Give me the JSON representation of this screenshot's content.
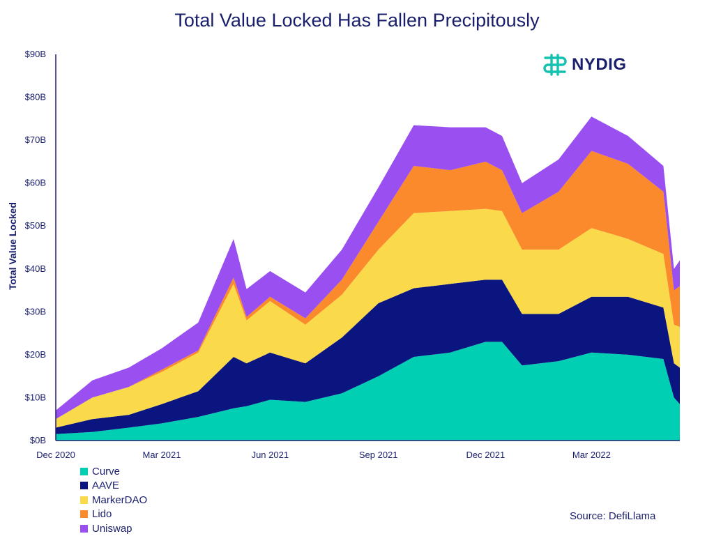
{
  "chart_data": {
    "type": "area",
    "stacked": true,
    "title": "Total Value Locked Has Fallen Precipitously",
    "xlabel": "",
    "ylabel": "Total Value Locked",
    "ylim": [
      0,
      90
    ],
    "y_ticks": [
      "$0B",
      "$10B",
      "$20B",
      "$30B",
      "$40B",
      "$50B",
      "$60B",
      "$70B",
      "$80B",
      "$90B"
    ],
    "x_ticks": [
      "Dec 2020",
      "Mar 2021",
      "Jun 2021",
      "Sep 2021",
      "Dec 2021",
      "Mar 2022"
    ],
    "x": [
      "2020-12-01",
      "2021-01-01",
      "2021-02-01",
      "2021-03-01",
      "2021-04-01",
      "2021-05-01",
      "2021-05-12",
      "2021-06-01",
      "2021-07-01",
      "2021-08-01",
      "2021-09-01",
      "2021-10-01",
      "2021-11-01",
      "2021-12-01",
      "2021-12-15",
      "2022-01-01",
      "2022-02-01",
      "2022-03-01",
      "2022-04-01",
      "2022-05-01",
      "2022-05-10",
      "2022-05-15"
    ],
    "series": [
      {
        "name": "Curve",
        "color": "#00cfb4",
        "values": [
          1.5,
          2.0,
          3.0,
          4.0,
          5.5,
          7.5,
          8.0,
          9.5,
          9.0,
          11.0,
          15.0,
          19.5,
          20.5,
          23.0,
          23.0,
          17.5,
          18.5,
          20.5,
          20.0,
          19.0,
          10.0,
          8.5
        ]
      },
      {
        "name": "AAVE",
        "color": "#0a1580",
        "values": [
          1.5,
          3.0,
          3.0,
          4.5,
          6.0,
          12.0,
          10.0,
          11.0,
          9.0,
          13.0,
          17.0,
          16.0,
          16.0,
          14.5,
          14.5,
          12.0,
          11.0,
          13.0,
          13.5,
          12.0,
          8.0,
          8.5
        ]
      },
      {
        "name": "MarkerDAO",
        "color": "#fad94a",
        "values": [
          2.0,
          5.0,
          6.5,
          7.5,
          9.0,
          17.0,
          10.0,
          12.0,
          9.0,
          10.0,
          12.5,
          17.5,
          17.0,
          16.5,
          16.0,
          15.0,
          15.0,
          16.0,
          13.5,
          12.5,
          9.0,
          9.5
        ]
      },
      {
        "name": "Lido",
        "color": "#fb8a2c",
        "values": [
          0.0,
          0.0,
          0.0,
          0.5,
          0.5,
          1.5,
          0.8,
          1.0,
          1.5,
          3.5,
          6.5,
          11.0,
          9.5,
          11.0,
          9.5,
          8.5,
          13.5,
          18.0,
          17.5,
          14.5,
          8.0,
          9.5
        ]
      },
      {
        "name": "Uniswap",
        "color": "#9a50f0",
        "values": [
          2.0,
          4.0,
          4.5,
          5.0,
          6.5,
          9.0,
          6.5,
          6.0,
          6.0,
          7.0,
          8.0,
          9.5,
          10.0,
          8.0,
          8.0,
          7.0,
          7.5,
          8.0,
          6.5,
          6.0,
          5.0,
          6.0
        ]
      }
    ]
  },
  "logo": {
    "text": "NYDIG",
    "color": "#14c2b0"
  },
  "source": "Source: DefiLlama"
}
